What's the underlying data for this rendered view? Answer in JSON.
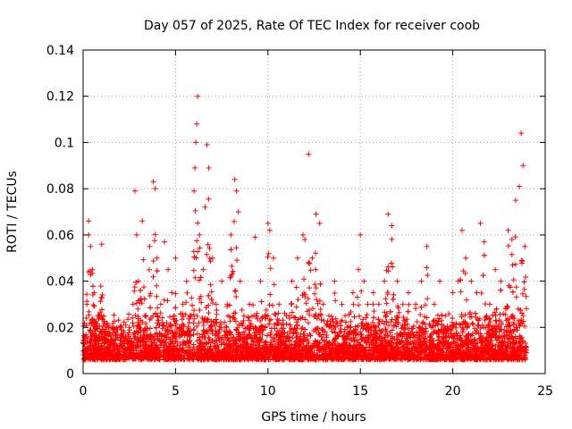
{
  "chart_data": {
    "type": "scatter",
    "title": "Day 057 of 2025, Rate Of TEC Index for receiver coob",
    "xlabel": "GPS time / hours",
    "ylabel": "ROTI / TECUs",
    "xlim": [
      0,
      25
    ],
    "ylim": [
      0,
      0.14
    ],
    "x_ticks": [
      "0",
      "5",
      "10",
      "15",
      "20",
      "25"
    ],
    "y_ticks": [
      "0",
      "0.02",
      "0.04",
      "0.06",
      "0.08",
      "0.1",
      "0.12",
      "0.14"
    ],
    "grid": true,
    "marker": "+",
    "color": "#ff0000",
    "series": [
      {
        "name": "ROTI",
        "x": [
          0.1,
          0.2,
          0.3,
          0.4,
          0.5,
          0.6,
          0.8,
          1.0,
          1.2,
          1.5,
          1.8,
          2.0,
          2.3,
          2.5,
          2.7,
          2.8,
          2.9,
          3.0,
          3.2,
          3.4,
          3.6,
          3.8,
          3.9,
          4.0,
          4.2,
          4.4,
          4.6,
          4.8,
          5.0,
          5.2,
          5.4,
          5.6,
          5.8,
          6.0,
          6.05,
          6.1,
          6.15,
          6.2,
          6.3,
          6.5,
          6.6,
          6.7,
          6.8,
          7.0,
          7.2,
          7.5,
          7.8,
          8.0,
          8.2,
          8.3,
          8.4,
          8.5,
          8.7,
          9.0,
          9.3,
          9.6,
          10.0,
          10.1,
          10.3,
          10.6,
          11.0,
          11.3,
          11.6,
          11.9,
          12.0,
          12.2,
          12.4,
          12.6,
          12.8,
          13.0,
          13.3,
          13.6,
          14.0,
          14.3,
          14.6,
          14.9,
          15.0,
          15.2,
          15.4,
          15.7,
          16.0,
          16.3,
          16.5,
          16.7,
          17.0,
          17.3,
          17.6,
          18.0,
          18.3,
          18.6,
          19.0,
          19.3,
          19.6,
          20.0,
          20.3,
          20.5,
          20.7,
          21.0,
          21.3,
          21.5,
          21.7,
          22.0,
          22.3,
          22.6,
          23.0,
          23.2,
          23.4,
          23.6,
          23.7,
          23.8,
          23.9
        ],
        "y": [
          0.01,
          0.03,
          0.066,
          0.055,
          0.045,
          0.035,
          0.025,
          0.056,
          0.015,
          0.012,
          0.018,
          0.01,
          0.016,
          0.02,
          0.03,
          0.079,
          0.06,
          0.04,
          0.066,
          0.025,
          0.055,
          0.083,
          0.08,
          0.05,
          0.03,
          0.057,
          0.045,
          0.035,
          0.05,
          0.02,
          0.03,
          0.04,
          0.025,
          0.079,
          0.089,
          0.1,
          0.108,
          0.12,
          0.06,
          0.045,
          0.072,
          0.099,
          0.089,
          0.05,
          0.03,
          0.04,
          0.03,
          0.06,
          0.084,
          0.079,
          0.07,
          0.04,
          0.025,
          0.03,
          0.059,
          0.04,
          0.065,
          0.062,
          0.05,
          0.03,
          0.025,
          0.04,
          0.05,
          0.06,
          0.058,
          0.095,
          0.05,
          0.069,
          0.065,
          0.03,
          0.025,
          0.04,
          0.03,
          0.02,
          0.035,
          0.045,
          0.06,
          0.04,
          0.03,
          0.035,
          0.03,
          0.04,
          0.069,
          0.064,
          0.04,
          0.03,
          0.035,
          0.03,
          0.04,
          0.055,
          0.03,
          0.04,
          0.025,
          0.035,
          0.04,
          0.062,
          0.05,
          0.04,
          0.035,
          0.065,
          0.057,
          0.03,
          0.045,
          0.04,
          0.062,
          0.058,
          0.075,
          0.081,
          0.104,
          0.09,
          0.055
        ]
      }
    ]
  }
}
